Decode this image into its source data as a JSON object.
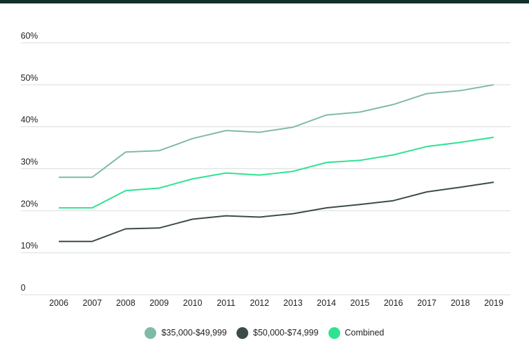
{
  "chart_data": {
    "type": "line",
    "x": [
      2006,
      2007,
      2008,
      2009,
      2010,
      2011,
      2012,
      2013,
      2014,
      2015,
      2016,
      2017,
      2018,
      2019
    ],
    "yticks": [
      "0",
      "10%",
      "20%",
      "30%",
      "40%",
      "50%",
      "60%"
    ],
    "ylim": [
      0,
      60
    ],
    "grid": true,
    "legend_position": "bottom-center",
    "series": [
      {
        "name": "$35,000-$49,999",
        "color": "#7fbaa8",
        "values": [
          28,
          28,
          34,
          34.3,
          37.2,
          39.1,
          38.7,
          39.9,
          42.8,
          43.5,
          45.3,
          47.9,
          48.6,
          50
        ]
      },
      {
        "name": "$50,000-$74,999",
        "color": "#3d4a4a",
        "values": [
          12.7,
          12.7,
          15.7,
          15.9,
          18,
          18.8,
          18.5,
          19.3,
          20.7,
          21.5,
          22.4,
          24.5,
          25.6,
          26.8
        ]
      },
      {
        "name": "Combined",
        "color": "#2ee38f",
        "values": [
          20.7,
          20.7,
          24.8,
          25.4,
          27.6,
          29,
          28.5,
          29.4,
          31.5,
          32,
          33.3,
          35.3,
          36.3,
          37.5
        ]
      }
    ]
  }
}
